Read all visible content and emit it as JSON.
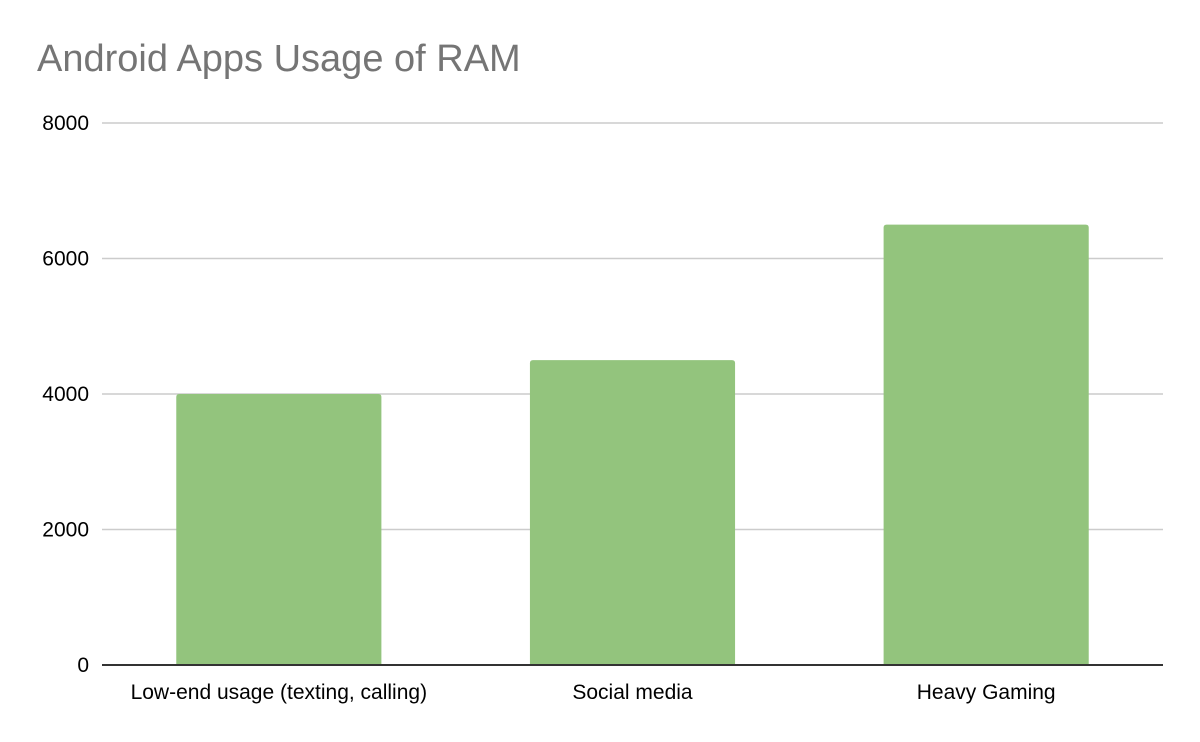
{
  "chart_data": {
    "type": "bar",
    "title": "Android Apps Usage of RAM",
    "xlabel": "",
    "ylabel": "",
    "categories": [
      "Low-end usage (texting, calling)",
      "Social media",
      "Heavy Gaming"
    ],
    "values": [
      4000,
      4500,
      6500
    ],
    "ylim": [
      0,
      8000
    ],
    "yticks": [
      "0",
      "2000",
      "4000",
      "6000",
      "8000"
    ],
    "grid": true,
    "legend": "none",
    "bar_color": "#93c47d",
    "grid_color": "#cccccc",
    "axis_color": "#333333",
    "title_color": "#757575"
  }
}
